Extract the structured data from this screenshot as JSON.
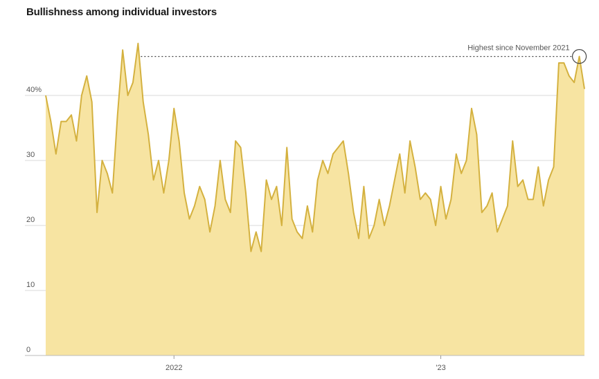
{
  "chart_data": {
    "type": "area",
    "title": "Bullishness among individual investors",
    "ylim": [
      0,
      50
    ],
    "y_ticks": [
      {
        "value": 0,
        "label": "0"
      },
      {
        "value": 10,
        "label": "10"
      },
      {
        "value": 20,
        "label": "20"
      },
      {
        "value": 30,
        "label": "30"
      },
      {
        "value": 40,
        "label": "40%"
      }
    ],
    "x_ticks": [
      {
        "index": 25,
        "label": "2022"
      },
      {
        "index": 77,
        "label": "'23"
      }
    ],
    "grid": true,
    "colors": {
      "line": "#d4b13f",
      "fill": "#f7e4a2",
      "grid": "#d9d9d9",
      "annotation": "#444444"
    },
    "values": [
      40,
      36,
      31,
      36,
      36,
      37,
      33,
      40,
      43,
      39,
      22,
      30,
      28,
      25,
      37,
      47,
      40,
      42,
      48,
      39,
      34,
      27,
      30,
      25,
      30,
      38,
      33,
      25,
      21,
      23,
      26,
      24,
      19,
      23,
      30,
      24,
      22,
      33,
      32,
      25,
      16,
      19,
      16,
      27,
      24,
      26,
      20,
      32,
      21,
      19,
      18,
      23,
      19,
      27,
      30,
      28,
      31,
      32,
      33,
      28,
      22,
      18,
      26,
      18,
      20,
      24,
      20,
      23,
      27,
      31,
      25,
      33,
      29,
      24,
      25,
      24,
      20,
      26,
      21,
      24,
      31,
      28,
      30,
      38,
      34,
      22,
      23,
      25,
      19,
      21,
      23,
      33,
      26,
      27,
      24,
      24,
      29,
      23,
      27,
      29,
      45,
      45,
      43,
      42,
      46,
      41
    ],
    "annotation": {
      "text": "Highest since November 2021",
      "start_index": 18,
      "end_index": 104,
      "value": 46
    }
  }
}
